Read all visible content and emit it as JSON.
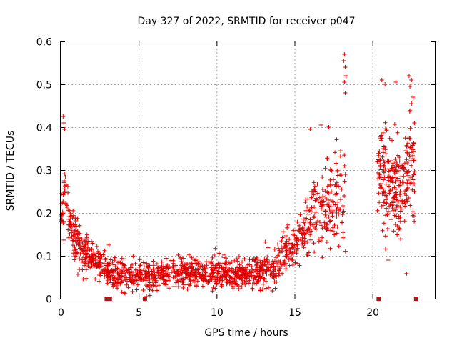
{
  "chart_data": {
    "type": "scatter",
    "title": "Day 327 of 2022, SRMTID for receiver p047",
    "xlabel": "GPS time / hours",
    "ylabel": "SRMTID / TECUs",
    "xlim": [
      0,
      24
    ],
    "ylim": [
      0,
      0.6
    ],
    "x_ticks": [
      0,
      5,
      10,
      15,
      20
    ],
    "x_tick_labels": [
      "0",
      "5",
      "10",
      "15",
      "20"
    ],
    "y_ticks": [
      0,
      0.1,
      0.2,
      0.3,
      0.4,
      0.5,
      0.6
    ],
    "y_tick_labels": [
      "0",
      "0.1",
      "0.2",
      "0.3",
      "0.4",
      "0.5",
      "0.6"
    ],
    "grid": true,
    "marker": "+",
    "color": "#e00000",
    "series": [
      {
        "name": "SRMTID",
        "segments": [
          {
            "x": [
              0.0,
              0.3,
              0.6,
              1.0,
              1.5,
              2.0,
              2.5,
              3.0,
              3.5,
              4.0,
              5.0,
              6.0,
              7.0,
              8.0,
              9.0,
              10.0,
              11.0,
              12.0,
              13.0,
              13.8,
              14.5,
              15.0,
              15.5,
              16.0,
              16.5,
              17.0,
              17.5,
              18.0,
              18.3
            ],
            "center": [
              0.18,
              0.24,
              0.18,
              0.13,
              0.11,
              0.1,
              0.08,
              0.07,
              0.06,
              0.06,
              0.06,
              0.055,
              0.06,
              0.06,
              0.06,
              0.06,
              0.055,
              0.06,
              0.065,
              0.08,
              0.1,
              0.12,
              0.15,
              0.18,
              0.2,
              0.22,
              0.24,
              0.24,
              0.26
            ],
            "spread": [
              0.05,
              0.09,
              0.05,
              0.05,
              0.04,
              0.04,
              0.035,
              0.03,
              0.03,
              0.03,
              0.035,
              0.03,
              0.03,
              0.03,
              0.03,
              0.03,
              0.03,
              0.03,
              0.035,
              0.04,
              0.05,
              0.05,
              0.07,
              0.09,
              0.09,
              0.09,
              0.1,
              0.12,
              0.12
            ],
            "count": 1450
          },
          {
            "x": [
              20.3,
              20.8,
              21.3,
              21.8,
              22.3,
              22.7
            ],
            "center": [
              0.3,
              0.28,
              0.27,
              0.26,
              0.3,
              0.3
            ],
            "spread": [
              0.12,
              0.11,
              0.1,
              0.1,
              0.13,
              0.13
            ],
            "count": 280
          }
        ]
      }
    ],
    "outliers": [
      {
        "x": 0.15,
        "y": 0.425
      },
      {
        "x": 0.2,
        "y": 0.41
      },
      {
        "x": 0.25,
        "y": 0.395
      },
      {
        "x": 18.2,
        "y": 0.57
      },
      {
        "x": 18.15,
        "y": 0.555
      },
      {
        "x": 18.25,
        "y": 0.54
      },
      {
        "x": 18.3,
        "y": 0.52
      },
      {
        "x": 18.2,
        "y": 0.505
      },
      {
        "x": 18.25,
        "y": 0.48
      },
      {
        "x": 20.6,
        "y": 0.51
      },
      {
        "x": 20.8,
        "y": 0.5
      },
      {
        "x": 21.5,
        "y": 0.505
      },
      {
        "x": 22.35,
        "y": 0.52
      },
      {
        "x": 22.5,
        "y": 0.51
      },
      {
        "x": 22.4,
        "y": 0.495
      },
      {
        "x": 22.6,
        "y": 0.47
      },
      {
        "x": 22.5,
        "y": 0.455
      },
      {
        "x": 21.0,
        "y": 0.09
      },
      {
        "x": 16.0,
        "y": 0.395
      },
      {
        "x": 16.7,
        "y": 0.405
      },
      {
        "x": 17.2,
        "y": 0.4
      },
      {
        "x": 5.3,
        "y": 0.02
      },
      {
        "x": 5.5,
        "y": 0.005
      }
    ],
    "gap_markers": [
      {
        "x": 2.95,
        "y": 0.0
      },
      {
        "x": 3.15,
        "y": 0.0
      },
      {
        "x": 5.4,
        "y": 0.0
      },
      {
        "x": 20.4,
        "y": 0.0
      },
      {
        "x": 22.8,
        "y": 0.0
      }
    ]
  }
}
